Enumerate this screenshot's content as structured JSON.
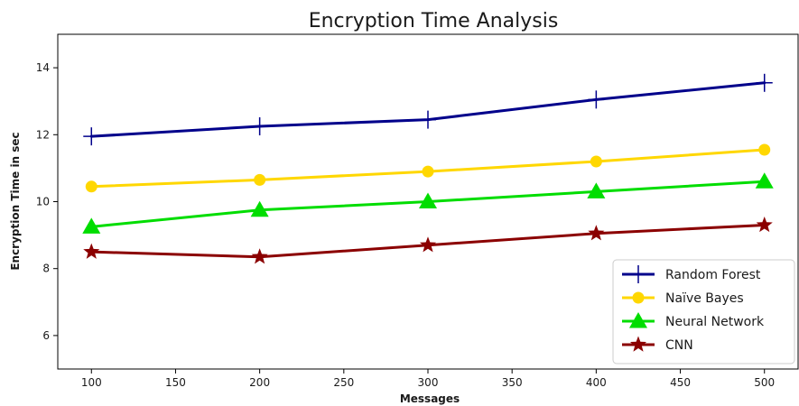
{
  "chart_data": {
    "type": "line",
    "title": "Encryption Time  Analysis",
    "xlabel": "Messages",
    "ylabel": "Encryption Time  in sec",
    "x": [
      100,
      200,
      300,
      400,
      500
    ],
    "xlim": [
      80,
      520
    ],
    "ylim": [
      5,
      15
    ],
    "xticks": [
      100,
      150,
      200,
      250,
      300,
      350,
      400,
      450,
      500
    ],
    "yticks": [
      6,
      8,
      10,
      12,
      14
    ],
    "grid": false,
    "legend_position": "bottom-right",
    "series": [
      {
        "name": "Random Forest",
        "values": [
          11.95,
          12.25,
          12.45,
          13.05,
          13.55
        ],
        "color": "#00008b",
        "marker": "plus"
      },
      {
        "name": "Naïve Bayes",
        "values": [
          10.45,
          10.65,
          10.9,
          11.2,
          11.55
        ],
        "color": "#ffd700",
        "marker": "circle"
      },
      {
        "name": "Neural Network",
        "values": [
          9.25,
          9.75,
          10.0,
          10.3,
          10.6
        ],
        "color": "#00dd00",
        "marker": "triangle"
      },
      {
        "name": "CNN",
        "values": [
          8.5,
          8.35,
          8.7,
          9.05,
          9.3
        ],
        "color": "#8b0000",
        "marker": "star"
      }
    ]
  }
}
